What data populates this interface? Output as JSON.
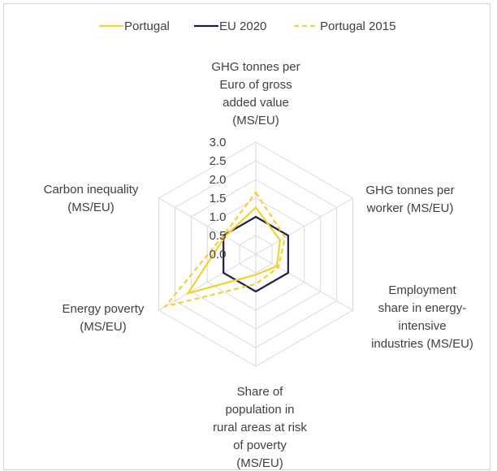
{
  "chart_data": {
    "type": "radar",
    "title": "",
    "axes": [
      [
        "GHG tonnes per",
        "Euro of gross",
        "added value",
        "(MS/EU)"
      ],
      [
        "GHG tonnes per",
        "worker (MS/EU)"
      ],
      [
        "Employment",
        "share in energy-",
        "intensive",
        "industries (MS/EU)"
      ],
      [
        "Share of",
        "population in",
        "rural areas at risk",
        "of poverty",
        "(MS/EU)"
      ],
      [
        "Energy poverty",
        "(MS/EU)"
      ],
      [
        "Carbon inequality",
        "(MS/EU)"
      ]
    ],
    "rlim": [
      0,
      3.0
    ],
    "ticks": [
      "0.0",
      "0.5",
      "1.0",
      "1.5",
      "2.0",
      "2.5",
      "3.0"
    ],
    "tick_values": [
      0,
      0.5,
      1.0,
      1.5,
      2.0,
      2.5,
      3.0
    ],
    "grid": true,
    "legend_position": "top",
    "series": [
      {
        "name": "Portugal",
        "values": [
          1.25,
          0.75,
          0.65,
          0.55,
          2.1,
          0.95
        ],
        "color": "#f5d12b",
        "dash": "solid"
      },
      {
        "name": "EU 2020",
        "values": [
          1.0,
          1.0,
          1.0,
          1.0,
          1.0,
          1.0
        ],
        "color": "#1c1f4e",
        "dash": "solid"
      },
      {
        "name": "Portugal 2015",
        "values": [
          1.65,
          0.9,
          0.7,
          0.8,
          2.8,
          1.0
        ],
        "color": "#f5d12b",
        "dash": "dashed"
      }
    ]
  }
}
